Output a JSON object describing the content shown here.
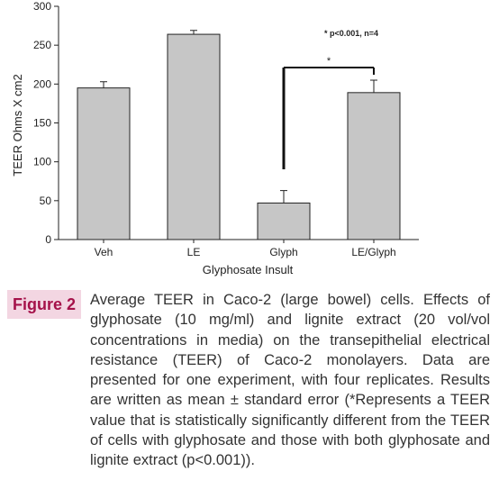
{
  "chart_data": {
    "type": "bar",
    "categories": [
      "Veh",
      "LE",
      "Glyph",
      "LE/Glyph"
    ],
    "values": [
      195,
      264,
      47,
      189
    ],
    "errors": [
      8,
      5,
      16,
      16
    ],
    "xlabel": "Glyphosate Insult",
    "ylabel": "TEER Ohms X cm2",
    "ylim": [
      0,
      300
    ],
    "yticks": [
      "0",
      "50",
      "100",
      "150",
      "200",
      "250",
      "300"
    ],
    "bar_color": "#c6c6c6",
    "annotation_note": "* p<0.001, n=4",
    "significance_marker": "*",
    "grid": false
  },
  "caption": {
    "figure_label": "Figure 2",
    "text": "Average TEER in Caco-2 (large bowel) cells. Effects of glyphosate (10 mg/ml) and lignite extract (20 vol/vol concentrations in media) on the transepithelial electrical resistance (TEER) of Caco-2 monolayers. Data are presented for one experiment, with four replicates. Results are written as mean ± standard error (*Represents a TEER value that is statistically significantly different from the TEER of cells with glyphosate and those with both glyphosate and lignite extract (p<0.001))."
  }
}
